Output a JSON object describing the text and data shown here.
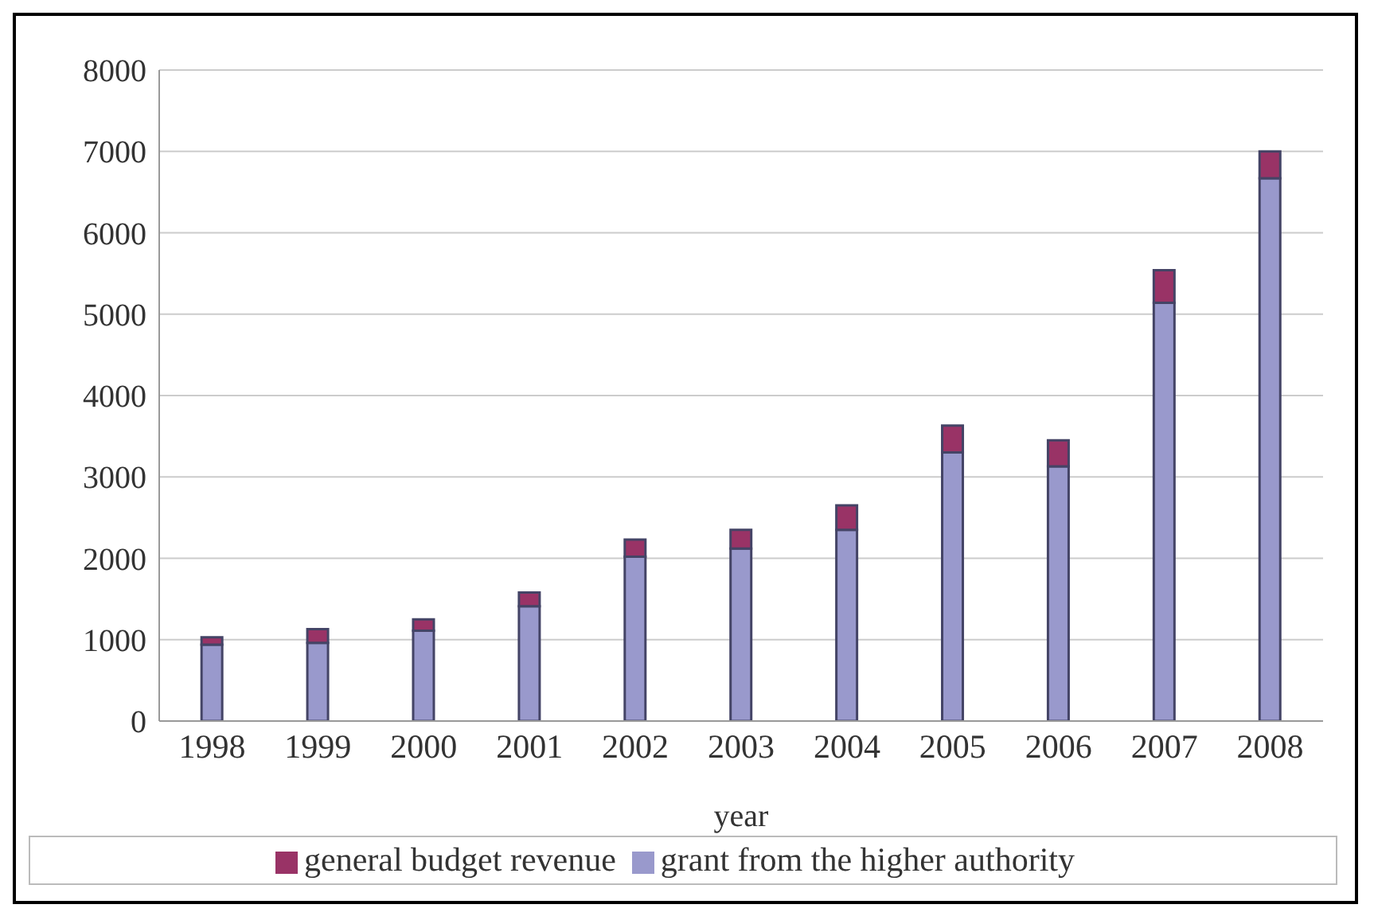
{
  "chart_data": {
    "type": "bar",
    "xlabel": "year",
    "categories": [
      "1998",
      "1999",
      "2000",
      "2001",
      "2002",
      "2003",
      "2004",
      "2005",
      "2006",
      "2007",
      "2008"
    ],
    "series": [
      {
        "name": "grant from the higher authority",
        "color": "#9999cc",
        "values": [
          940,
          960,
          1110,
          1410,
          2020,
          2120,
          2350,
          3300,
          3130,
          5140,
          6670
        ]
      },
      {
        "name": "general budget revenue",
        "color": "#993366",
        "values": [
          90,
          170,
          140,
          170,
          210,
          230,
          300,
          330,
          320,
          400,
          330
        ]
      }
    ],
    "stacked": true,
    "ylim": [
      0,
      8000
    ],
    "yticks": [
      0,
      1000,
      2000,
      3000,
      4000,
      5000,
      6000,
      7000,
      8000
    ],
    "grid": "y",
    "legend": "bottom"
  }
}
